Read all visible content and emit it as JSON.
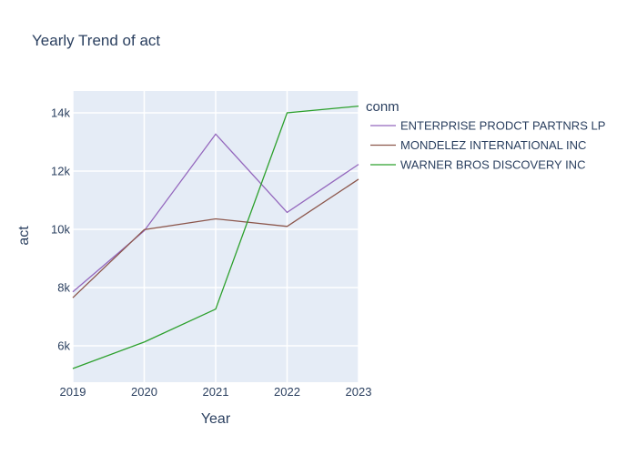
{
  "chart_data": {
    "type": "line",
    "title": "Yearly Trend of act",
    "xlabel": "Year",
    "ylabel": "act",
    "x": [
      "2019",
      "2020",
      "2021",
      "2022",
      "2023"
    ],
    "xlim": [
      2019,
      2023
    ],
    "ylim": [
      4750,
      14750
    ],
    "yticks": [
      6000,
      8000,
      10000,
      12000,
      14000
    ],
    "ytick_labels": [
      "6k",
      "8k",
      "10k",
      "12k",
      "14k"
    ],
    "grid": true,
    "legend_title": "conm",
    "legend_position": "right",
    "plot_background": "#e5ecf6",
    "series": [
      {
        "name": "ENTERPRISE PRODCT PARTNRS LP",
        "color": "#9467bd",
        "values": [
          7850,
          9950,
          13270,
          10580,
          12230
        ]
      },
      {
        "name": "MONDELEZ INTERNATIONAL INC",
        "color": "#8c564b",
        "values": [
          7650,
          9990,
          10360,
          10100,
          11720
        ]
      },
      {
        "name": "WARNER BROS DISCOVERY INC",
        "color": "#2ca02c",
        "values": [
          5220,
          6130,
          7260,
          14000,
          14230
        ]
      }
    ]
  }
}
